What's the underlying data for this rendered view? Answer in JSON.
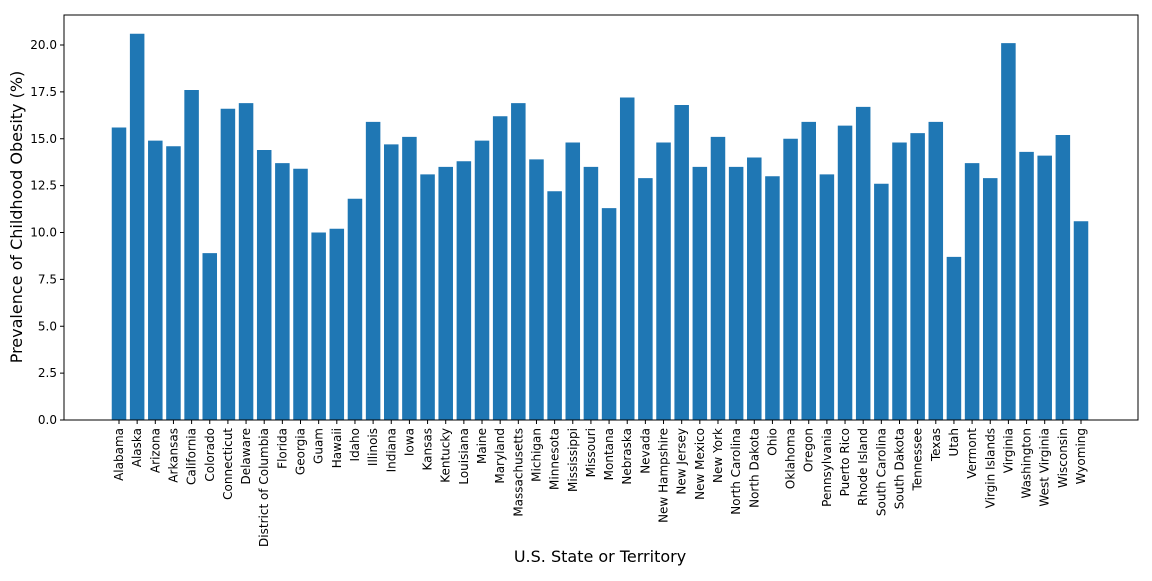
{
  "chart_data": {
    "type": "bar",
    "title": "",
    "xlabel": "U.S. State or Territory",
    "ylabel": "Prevalence of Childhood Obesity (%)",
    "ylim": [
      0,
      21.6
    ],
    "yticks": [
      "0.0",
      "2.5",
      "5.0",
      "7.5",
      "10.0",
      "12.5",
      "15.0",
      "17.5",
      "20.0"
    ],
    "grid": false,
    "bar_color": "#1f77b4",
    "categories": [
      "Alabama",
      "Alaska",
      "Arizona",
      "Arkansas",
      "California",
      "Colorado",
      "Connecticut",
      "Delaware",
      "District of Columbia",
      "Florida",
      "Georgia",
      "Guam",
      "Hawaii",
      "Idaho",
      "Illinois",
      "Indiana",
      "Iowa",
      "Kansas",
      "Kentucky",
      "Louisiana",
      "Maine",
      "Maryland",
      "Massachusetts",
      "Michigan",
      "Minnesota",
      "Mississippi",
      "Missouri",
      "Montana",
      "Nebraska",
      "Nevada",
      "New Hampshire",
      "New Jersey",
      "New Mexico",
      "New York",
      "North Carolina",
      "North Dakota",
      "Ohio",
      "Oklahoma",
      "Oregon",
      "Pennsylvania",
      "Puerto Rico",
      "Rhode Island",
      "South Carolina",
      "South Dakota",
      "Tennessee",
      "Texas",
      "Utah",
      "Vermont",
      "Virgin Islands",
      "Virginia",
      "Washington",
      "West Virginia",
      "Wisconsin",
      "Wyoming"
    ],
    "values": [
      15.6,
      20.6,
      14.9,
      14.6,
      17.6,
      8.9,
      16.6,
      16.9,
      14.4,
      13.7,
      13.4,
      10.0,
      10.2,
      11.8,
      15.9,
      14.7,
      15.1,
      13.1,
      13.5,
      13.8,
      14.9,
      16.2,
      16.9,
      13.9,
      12.2,
      14.8,
      13.5,
      11.3,
      17.2,
      12.9,
      14.8,
      16.8,
      13.5,
      15.1,
      13.5,
      14.0,
      13.0,
      15.0,
      15.9,
      13.1,
      15.7,
      16.7,
      12.6,
      14.8,
      15.3,
      15.9,
      8.7,
      13.7,
      12.9,
      20.1,
      14.3,
      14.1,
      15.2,
      10.6
    ]
  }
}
